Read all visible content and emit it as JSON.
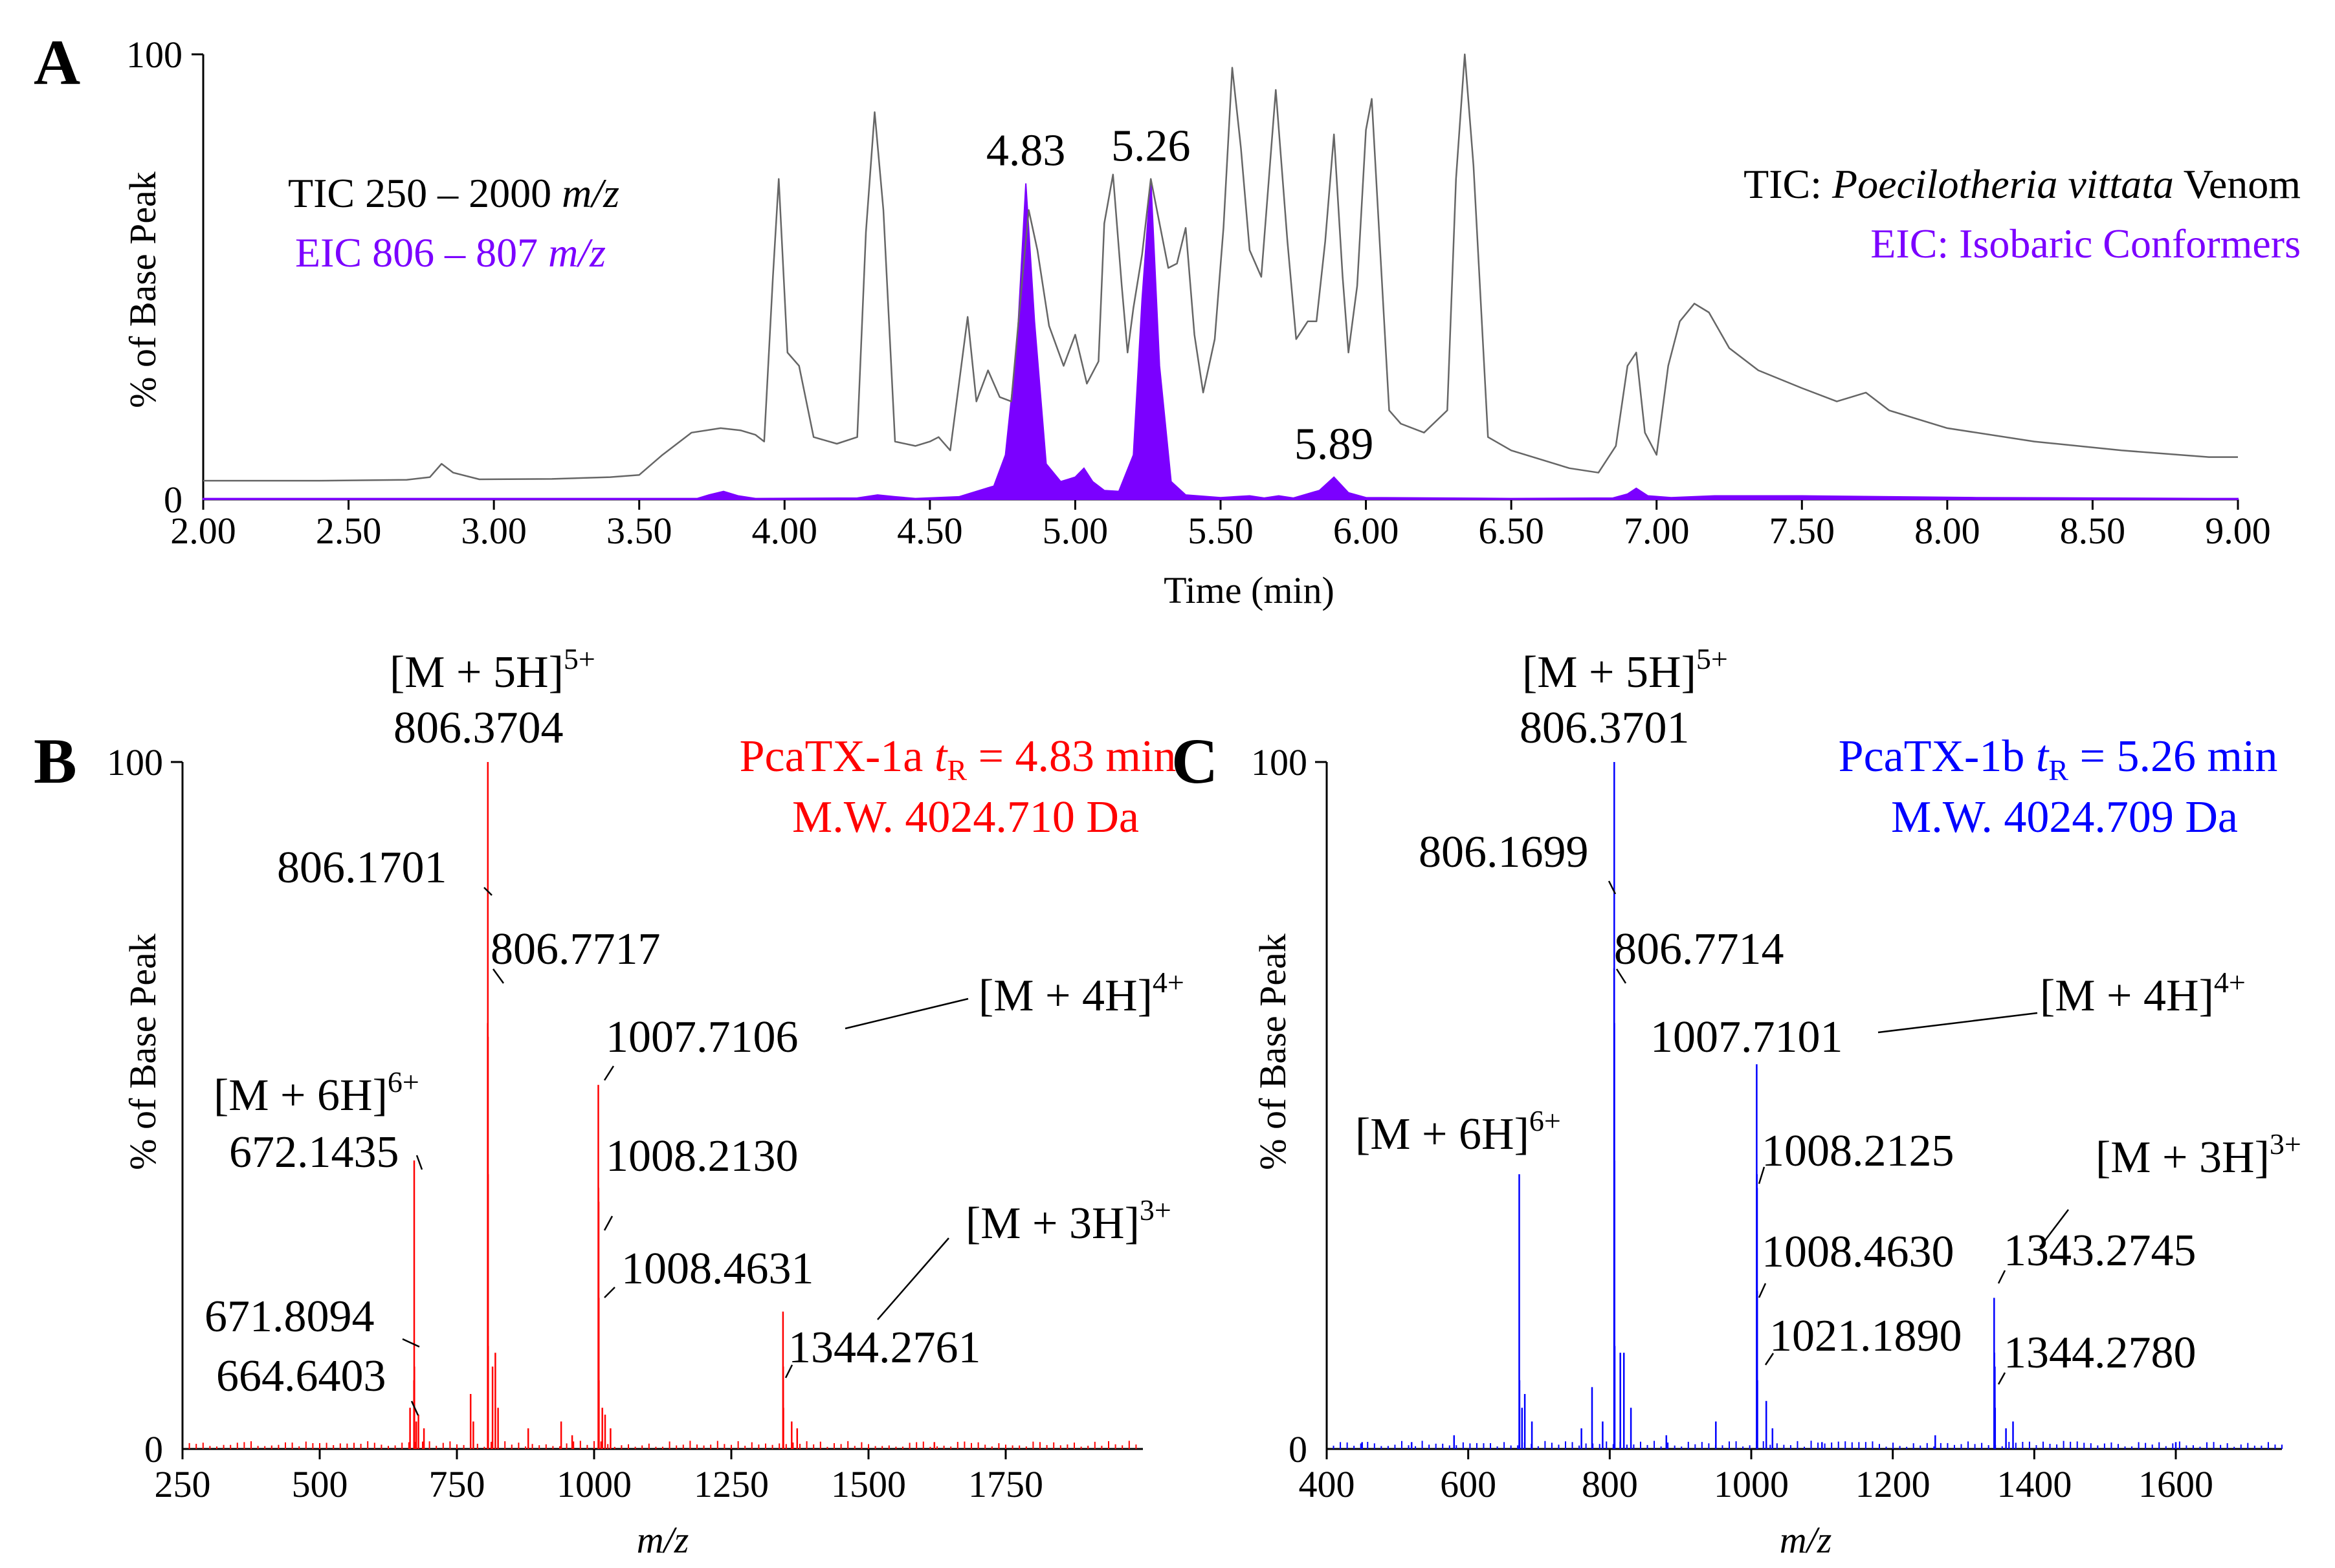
{
  "chart_data": [
    {
      "panel": "A",
      "type": "line",
      "xlabel": "Time (min)",
      "ylabel": "% of Base Peak",
      "xlim": [
        2.0,
        9.0
      ],
      "ylim": [
        0,
        100
      ],
      "x_ticks": [
        "2.00",
        "2.50",
        "3.00",
        "3.50",
        "4.00",
        "4.50",
        "5.00",
        "5.50",
        "6.00",
        "6.50",
        "7.00",
        "7.50",
        "8.00",
        "8.50",
        "9.00"
      ],
      "y_ticks": [
        "0",
        "100"
      ],
      "legend_left": {
        "tic": "TIC 250 – 2000",
        "eic": "EIC 806 – 807",
        "unit": "m/z"
      },
      "legend_right": {
        "tic_prefix": "TIC: ",
        "species": "Poecilotheria vittata",
        "tic_suffix": " Venom",
        "eic": "EIC: Isobaric Conformers"
      },
      "peak_labels": [
        {
          "label": "4.83",
          "x": 4.83,
          "y": 71
        },
        {
          "label": "5.26",
          "x": 5.26,
          "y": 72
        },
        {
          "label": "5.89",
          "x": 5.89,
          "y": 5
        }
      ],
      "colors": {
        "tic": "#666666",
        "eic": "#7b00ff"
      },
      "series": [
        {
          "name": "TIC",
          "points": [
            [
              2.0,
              4.2
            ],
            [
              2.4,
              4.2
            ],
            [
              2.7,
              4.4
            ],
            [
              2.78,
              5
            ],
            [
              2.82,
              8
            ],
            [
              2.86,
              6
            ],
            [
              2.95,
              4.5
            ],
            [
              3.2,
              4.6
            ],
            [
              3.4,
              5
            ],
            [
              3.5,
              5.5
            ],
            [
              3.58,
              10
            ],
            [
              3.68,
              15
            ],
            [
              3.78,
              16
            ],
            [
              3.85,
              15.5
            ],
            [
              3.9,
              14.5
            ],
            [
              3.93,
              13
            ],
            [
              3.96,
              50
            ],
            [
              3.98,
              72
            ],
            [
              4.01,
              33
            ],
            [
              4.05,
              30
            ],
            [
              4.1,
              14
            ],
            [
              4.18,
              12.5
            ],
            [
              4.25,
              14
            ],
            [
              4.28,
              60
            ],
            [
              4.31,
              87
            ],
            [
              4.34,
              65
            ],
            [
              4.38,
              13
            ],
            [
              4.45,
              12
            ],
            [
              4.5,
              13
            ],
            [
              4.53,
              14
            ],
            [
              4.57,
              11
            ],
            [
              4.6,
              26
            ],
            [
              4.63,
              41
            ],
            [
              4.66,
              22
            ],
            [
              4.7,
              29
            ],
            [
              4.74,
              23
            ],
            [
              4.78,
              22
            ],
            [
              4.82,
              51
            ],
            [
              4.84,
              65
            ],
            [
              4.87,
              56
            ],
            [
              4.91,
              39
            ],
            [
              4.96,
              30
            ],
            [
              5.0,
              37
            ],
            [
              5.04,
              26
            ],
            [
              5.08,
              31
            ],
            [
              5.1,
              62
            ],
            [
              5.13,
              73
            ],
            [
              5.16,
              48
            ],
            [
              5.18,
              33
            ],
            [
              5.2,
              43
            ],
            [
              5.23,
              55
            ],
            [
              5.26,
              72
            ],
            [
              5.29,
              62
            ],
            [
              5.32,
              52
            ],
            [
              5.35,
              53
            ],
            [
              5.38,
              61
            ],
            [
              5.41,
              37
            ],
            [
              5.44,
              24
            ],
            [
              5.48,
              36
            ],
            [
              5.51,
              61
            ],
            [
              5.54,
              97
            ],
            [
              5.57,
              79
            ],
            [
              5.6,
              56
            ],
            [
              5.64,
              50
            ],
            [
              5.69,
              92
            ],
            [
              5.73,
              58
            ],
            [
              5.76,
              36
            ],
            [
              5.8,
              40
            ],
            [
              5.83,
              40
            ],
            [
              5.86,
              58
            ],
            [
              5.89,
              82
            ],
            [
              5.92,
              50
            ],
            [
              5.94,
              33
            ],
            [
              5.97,
              48
            ],
            [
              6.0,
              83
            ],
            [
              6.02,
              90
            ],
            [
              6.05,
              55
            ],
            [
              6.08,
              20
            ],
            [
              6.12,
              17
            ],
            [
              6.2,
              15
            ],
            [
              6.28,
              20
            ],
            [
              6.31,
              72
            ],
            [
              6.34,
              100
            ],
            [
              6.37,
              75
            ],
            [
              6.42,
              14
            ],
            [
              6.5,
              11
            ],
            [
              6.6,
              9
            ],
            [
              6.7,
              7
            ],
            [
              6.8,
              6
            ],
            [
              6.86,
              12
            ],
            [
              6.9,
              30
            ],
            [
              6.93,
              33
            ],
            [
              6.96,
              15
            ],
            [
              7.0,
              10
            ],
            [
              7.04,
              30
            ],
            [
              7.08,
              40
            ],
            [
              7.13,
              44
            ],
            [
              7.18,
              42
            ],
            [
              7.25,
              34
            ],
            [
              7.35,
              29
            ],
            [
              7.5,
              25
            ],
            [
              7.62,
              22
            ],
            [
              7.67,
              23
            ],
            [
              7.72,
              24
            ],
            [
              7.8,
              20
            ],
            [
              8.0,
              16
            ],
            [
              8.3,
              13
            ],
            [
              8.6,
              11
            ],
            [
              8.9,
              9.5
            ],
            [
              9.0,
              9.5
            ]
          ]
        },
        {
          "name": "EIC",
          "points": [
            [
              2.0,
              0.2
            ],
            [
              3.7,
              0.2
            ],
            [
              3.74,
              1
            ],
            [
              3.79,
              1.8
            ],
            [
              3.84,
              0.8
            ],
            [
              3.9,
              0.2
            ],
            [
              4.25,
              0.3
            ],
            [
              4.32,
              1
            ],
            [
              4.38,
              0.6
            ],
            [
              4.45,
              0.2
            ],
            [
              4.6,
              0.6
            ],
            [
              4.72,
              3
            ],
            [
              4.76,
              10
            ],
            [
              4.8,
              35
            ],
            [
              4.83,
              71
            ],
            [
              4.86,
              40
            ],
            [
              4.9,
              8
            ],
            [
              4.95,
              4
            ],
            [
              5.0,
              5
            ],
            [
              5.03,
              7
            ],
            [
              5.06,
              4
            ],
            [
              5.1,
              2
            ],
            [
              5.15,
              1.8
            ],
            [
              5.2,
              10
            ],
            [
              5.23,
              45
            ],
            [
              5.26,
              72
            ],
            [
              5.29,
              30
            ],
            [
              5.33,
              4
            ],
            [
              5.38,
              1
            ],
            [
              5.5,
              0.4
            ],
            [
              5.6,
              0.8
            ],
            [
              5.65,
              0.3
            ],
            [
              5.7,
              0.8
            ],
            [
              5.75,
              0.3
            ],
            [
              5.84,
              2
            ],
            [
              5.89,
              5
            ],
            [
              5.94,
              1.5
            ],
            [
              6.0,
              0.4
            ],
            [
              6.5,
              0.2
            ],
            [
              6.85,
              0.3
            ],
            [
              6.9,
              1.2
            ],
            [
              6.93,
              2.5
            ],
            [
              6.97,
              0.8
            ],
            [
              7.05,
              0.4
            ],
            [
              7.2,
              0.8
            ],
            [
              7.5,
              0.8
            ],
            [
              7.8,
              0.6
            ],
            [
              8.1,
              0.4
            ],
            [
              8.9,
              0.2
            ],
            [
              9.0,
              0.2
            ]
          ]
        }
      ]
    },
    {
      "panel": "B",
      "type": "bar",
      "xlabel": "m/z",
      "ylabel": "% of Base Peak",
      "xlim": [
        250,
        2000
      ],
      "ylim": [
        0,
        100
      ],
      "x_ticks": [
        "250",
        "500",
        "750",
        "1000",
        "1250",
        "1500",
        "1750"
      ],
      "y_ticks": [
        "0",
        "100"
      ],
      "title_lines": {
        "l1": "PcaTX-1a",
        "t": "t",
        "sub": "R",
        "l1b": " = 4.83 min",
        "l2": "M.W. 4024.710 Da"
      },
      "color": "#ff0000",
      "annotations": [
        {
          "text": "806.3704",
          "x": 806.37,
          "y": 100
        },
        {
          "text": "806.1701",
          "x": 806.17,
          "y": 75
        },
        {
          "text": "806.7717",
          "x": 806.77,
          "y": 67
        },
        {
          "text": "1007.7106",
          "x": 1007.71,
          "y": 53
        },
        {
          "text": "1008.2130",
          "x": 1008.21,
          "y": 36
        },
        {
          "text": "1008.4631",
          "x": 1008.46,
          "y": 22
        },
        {
          "text": "672.1435",
          "x": 672.14,
          "y": 42
        },
        {
          "text": "671.8094",
          "x": 671.81,
          "y": 15
        },
        {
          "text": "664.6403",
          "x": 664.64,
          "y": 10
        },
        {
          "text": "1344.2761",
          "x": 1344.28,
          "y": 20
        }
      ],
      "ions": [
        {
          "base": "[M + 5H]",
          "sup": "5+"
        },
        {
          "base": "[M + 4H]",
          "sup": "4+"
        },
        {
          "base": "[M + 6H]",
          "sup": "6+"
        },
        {
          "base": "[M + 3H]",
          "sup": "3+"
        }
      ],
      "peaks": [
        [
          672.14,
          42
        ],
        [
          672.48,
          12
        ],
        [
          671.81,
          10
        ],
        [
          664.64,
          6
        ],
        [
          676,
          4
        ],
        [
          680,
          5
        ],
        [
          690,
          3
        ],
        [
          775,
          8
        ],
        [
          780,
          4
        ],
        [
          806.17,
          62
        ],
        [
          806.37,
          100
        ],
        [
          806.57,
          60
        ],
        [
          806.77,
          40
        ],
        [
          807.0,
          15
        ],
        [
          815,
          12
        ],
        [
          820,
          14
        ],
        [
          825,
          6
        ],
        [
          880,
          3
        ],
        [
          940,
          4
        ],
        [
          960,
          2
        ],
        [
          1007.71,
          53
        ],
        [
          1007.96,
          38
        ],
        [
          1008.21,
          36
        ],
        [
          1008.46,
          22
        ],
        [
          1008.7,
          10
        ],
        [
          1015,
          6
        ],
        [
          1020,
          5
        ],
        [
          1030,
          3
        ],
        [
          1344.28,
          20
        ],
        [
          1344.6,
          12
        ],
        [
          1344.9,
          6
        ],
        [
          1360,
          4
        ],
        [
          1370,
          3
        ],
        [
          1620,
          1
        ]
      ]
    },
    {
      "panel": "C",
      "type": "bar",
      "xlabel": "m/z",
      "ylabel": "% of Base Peak",
      "xlim": [
        400,
        1750
      ],
      "ylim": [
        0,
        100
      ],
      "x_ticks": [
        "400",
        "600",
        "800",
        "1000",
        "1200",
        "1400",
        "1600"
      ],
      "y_ticks": [
        "0",
        "100"
      ],
      "title_lines": {
        "l1": "PcaTX-1b",
        "t": "t",
        "sub": "R",
        "l1b": " = 5.26 min",
        "l2": "M.W. 4024.709 Da"
      },
      "color": "#0000ff",
      "annotations": [
        {
          "text": "806.3701",
          "x": 806.37,
          "y": 100
        },
        {
          "text": "806.1699",
          "x": 806.17,
          "y": 79
        },
        {
          "text": "806.7714",
          "x": 806.77,
          "y": 68
        },
        {
          "text": "1007.7101",
          "x": 1007.71,
          "y": 56
        },
        {
          "text": "1008.2125",
          "x": 1008.21,
          "y": 38
        },
        {
          "text": "1008.4630",
          "x": 1008.46,
          "y": 23
        },
        {
          "text": "1021.1890",
          "x": 1021.19,
          "y": 7
        },
        {
          "text": "1343.2745",
          "x": 1343.27,
          "y": 22
        },
        {
          "text": "1344.2780",
          "x": 1344.28,
          "y": 12
        }
      ],
      "ions": [
        {
          "base": "[M + 5H]",
          "sup": "5+"
        },
        {
          "base": "[M + 4H]",
          "sup": "4+"
        },
        {
          "base": "[M + 6H]",
          "sup": "6+"
        },
        {
          "base": "[M + 3H]",
          "sup": "3+"
        }
      ],
      "peaks": [
        [
          450,
          1
        ],
        [
          520,
          1
        ],
        [
          580,
          2
        ],
        [
          672.14,
          40
        ],
        [
          672.48,
          10
        ],
        [
          676,
          6
        ],
        [
          680,
          8
        ],
        [
          690,
          4
        ],
        [
          760,
          3
        ],
        [
          775,
          9
        ],
        [
          790,
          4
        ],
        [
          806.17,
          70
        ],
        [
          806.37,
          100
        ],
        [
          806.57,
          62
        ],
        [
          806.77,
          42
        ],
        [
          807.0,
          15
        ],
        [
          815,
          14
        ],
        [
          820,
          14
        ],
        [
          830,
          6
        ],
        [
          880,
          2
        ],
        [
          950,
          4
        ],
        [
          1007.71,
          56
        ],
        [
          1007.96,
          40
        ],
        [
          1008.21,
          38
        ],
        [
          1008.46,
          23
        ],
        [
          1008.7,
          10
        ],
        [
          1021.19,
          7
        ],
        [
          1030,
          3
        ],
        [
          1100,
          1
        ],
        [
          1260,
          2
        ],
        [
          1343.27,
          22
        ],
        [
          1343.6,
          14
        ],
        [
          1344.28,
          12
        ],
        [
          1344.6,
          6
        ],
        [
          1360,
          3
        ],
        [
          1370,
          4
        ],
        [
          1600,
          1
        ]
      ]
    }
  ]
}
